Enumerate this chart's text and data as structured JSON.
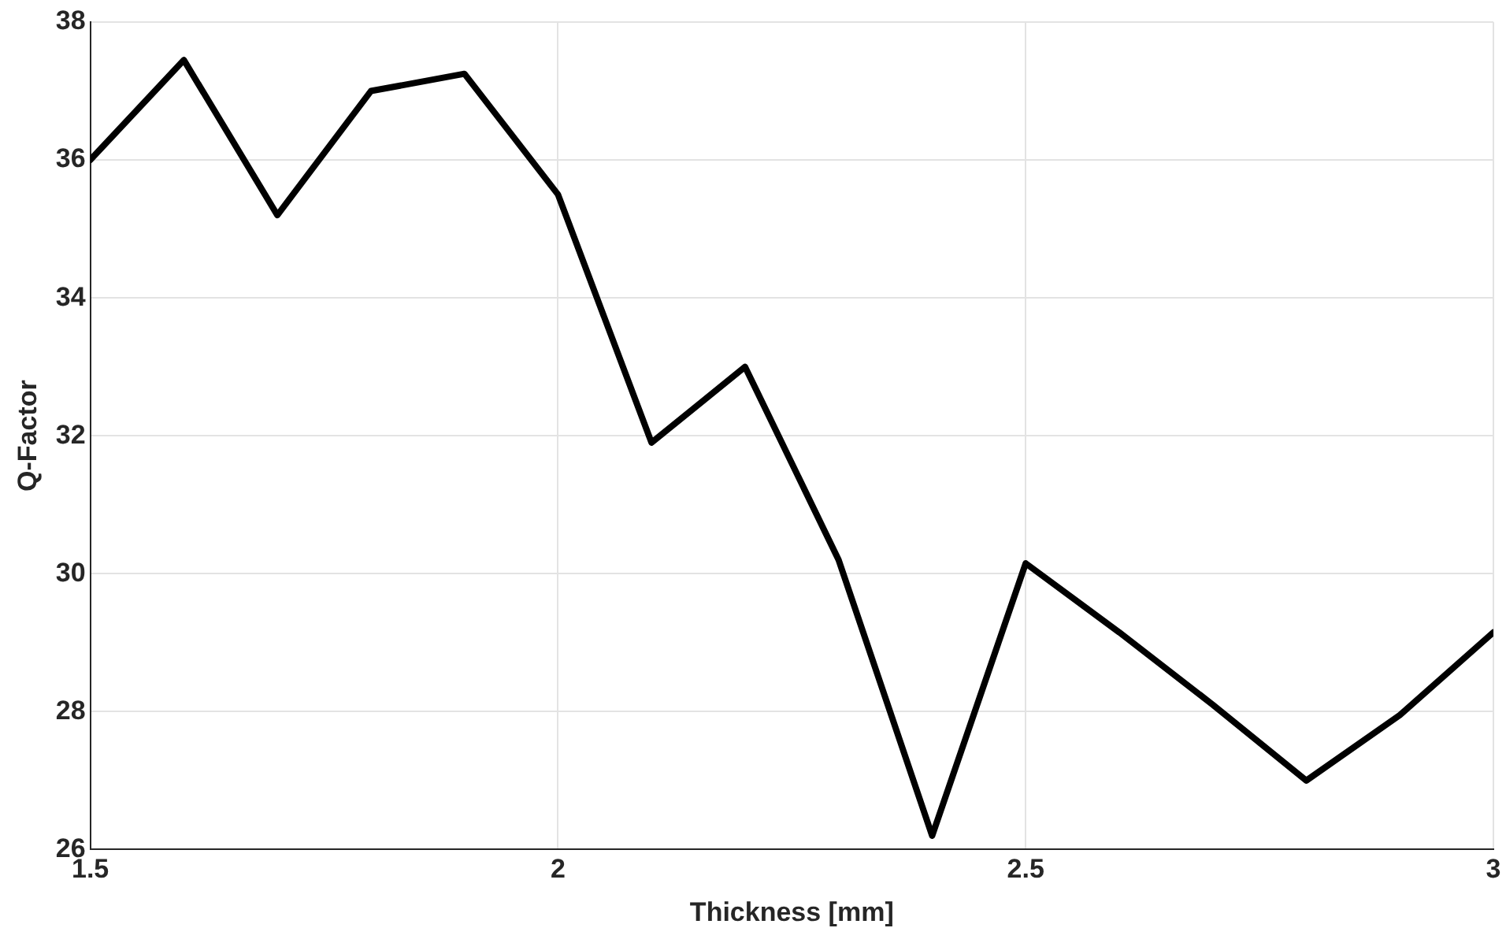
{
  "chart_data": {
    "type": "line",
    "xlabel": "Thickness [mm]",
    "ylabel": "Q-Factor",
    "x": [
      1.5,
      1.6,
      1.7,
      1.8,
      1.9,
      2.0,
      2.1,
      2.2,
      2.3,
      2.4,
      2.5,
      2.6,
      2.7,
      2.8,
      2.9,
      3.0
    ],
    "series": [
      {
        "color": "#000000",
        "values": [
          36.0,
          37.45,
          35.2,
          37.0,
          37.25,
          35.5,
          31.9,
          33.0,
          30.2,
          26.2,
          30.15,
          29.15,
          28.1,
          27.0,
          27.95,
          29.15
        ]
      }
    ],
    "xlim": [
      1.5,
      3
    ],
    "xticks": [
      1.5,
      2,
      2.5,
      3
    ],
    "ylim": [
      26,
      38
    ],
    "yticks": [
      26,
      28,
      30,
      32,
      34,
      36,
      38
    ],
    "grid": true,
    "legend": false,
    "marker": "none",
    "line_style": "solid"
  }
}
